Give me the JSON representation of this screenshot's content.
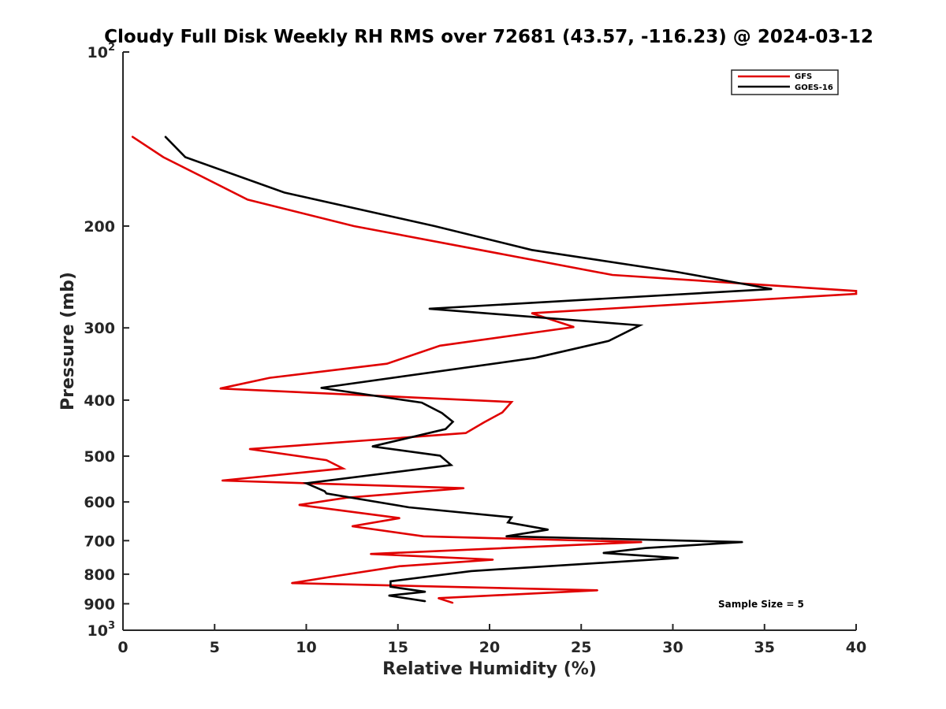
{
  "chart_data": {
    "type": "line",
    "title": "Cloudy Full Disk Weekly RH RMS over 72681 (43.57, -116.23) @ 2024-03-12",
    "xlabel": "Relative Humidity (%)",
    "ylabel": "Pressure (mb)",
    "xlim": [
      0,
      40
    ],
    "ylim": [
      100,
      1000
    ],
    "y_scale": "log",
    "y_reversed": true,
    "grid": false,
    "legend_position": "top-right",
    "x_ticks": [
      "0",
      "5",
      "10",
      "15",
      "20",
      "25",
      "30",
      "35",
      "40"
    ],
    "y_ticks": [
      {
        "value": 100,
        "base": "10",
        "exp": "2"
      },
      {
        "value": 200,
        "label": "200"
      },
      {
        "value": 300,
        "label": "300"
      },
      {
        "value": 400,
        "label": "400"
      },
      {
        "value": 500,
        "label": "500"
      },
      {
        "value": 600,
        "label": "600"
      },
      {
        "value": 700,
        "label": "700"
      },
      {
        "value": 800,
        "label": "800"
      },
      {
        "value": 900,
        "label": "900"
      },
      {
        "value": 1000,
        "base": "10",
        "exp": "3"
      }
    ],
    "annotation": "Sample Size = 5",
    "series": [
      {
        "name": "GFS",
        "color": "#e00000",
        "points": [
          [
            0.5,
            140
          ],
          [
            2.2,
            152
          ],
          [
            6.8,
            180
          ],
          [
            12.6,
            200
          ],
          [
            26.7,
            243
          ],
          [
            40.0,
            259
          ],
          [
            40.0,
            262
          ],
          [
            22.3,
            283
          ],
          [
            24.6,
            299
          ],
          [
            17.3,
            322
          ],
          [
            14.4,
            346
          ],
          [
            8.0,
            366
          ],
          [
            5.3,
            382
          ],
          [
            21.2,
            403
          ],
          [
            20.7,
            420
          ],
          [
            19.7,
            437
          ],
          [
            18.7,
            456
          ],
          [
            6.9,
            486
          ],
          [
            11.1,
            508
          ],
          [
            12.0,
            525
          ],
          [
            5.4,
            551
          ],
          [
            18.6,
            568
          ],
          [
            12.2,
            590
          ],
          [
            9.6,
            607
          ],
          [
            15.1,
            640
          ],
          [
            12.5,
            661
          ],
          [
            16.4,
            688
          ],
          [
            28.3,
            704
          ],
          [
            13.5,
            738
          ],
          [
            20.2,
            755
          ],
          [
            15.1,
            775
          ],
          [
            11.5,
            807
          ],
          [
            9.2,
            829
          ],
          [
            25.9,
            853
          ],
          [
            17.2,
            880
          ],
          [
            18.0,
            897
          ]
        ]
      },
      {
        "name": "GOES-16",
        "color": "#000000",
        "points": [
          [
            2.3,
            140
          ],
          [
            3.4,
            152
          ],
          [
            8.8,
            175
          ],
          [
            17.0,
            200
          ],
          [
            22.3,
            220
          ],
          [
            30.2,
            240
          ],
          [
            35.4,
            257
          ],
          [
            16.7,
            278
          ],
          [
            28.2,
            297
          ],
          [
            26.5,
            316
          ],
          [
            22.5,
            338
          ],
          [
            10.8,
            381
          ],
          [
            16.3,
            404
          ],
          [
            17.4,
            421
          ],
          [
            18.0,
            436
          ],
          [
            17.6,
            449
          ],
          [
            13.6,
            481
          ],
          [
            17.3,
            499
          ],
          [
            17.9,
            518
          ],
          [
            10.0,
            557
          ],
          [
            11.0,
            575
          ],
          [
            11.1,
            580
          ],
          [
            15.6,
            613
          ],
          [
            21.2,
            638
          ],
          [
            21.0,
            651
          ],
          [
            23.2,
            670
          ],
          [
            20.9,
            688
          ],
          [
            33.8,
            704
          ],
          [
            28.5,
            721
          ],
          [
            26.2,
            735
          ],
          [
            30.3,
            750
          ],
          [
            19.0,
            790
          ],
          [
            14.6,
            823
          ],
          [
            14.6,
            841
          ],
          [
            16.5,
            858
          ],
          [
            14.5,
            871
          ],
          [
            16.5,
            891
          ]
        ]
      }
    ]
  }
}
